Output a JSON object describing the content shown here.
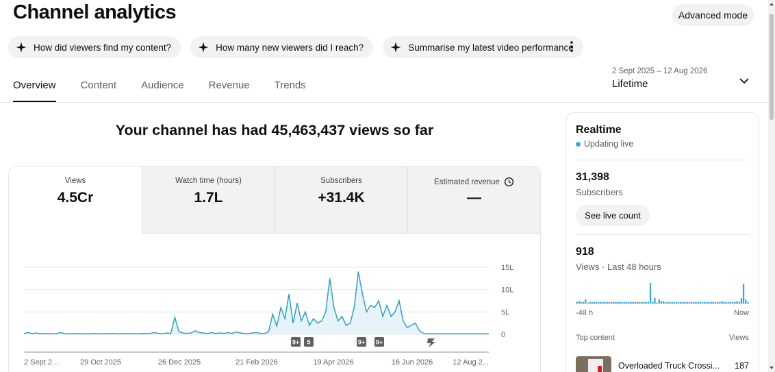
{
  "header": {
    "title": "Channel analytics",
    "advanced_mode": "Advanced mode"
  },
  "chips": [
    "How did viewers find my content?",
    "How many new viewers did I reach?",
    "Summarise my latest video performance"
  ],
  "tabs": [
    {
      "label": "Overview",
      "active": true
    },
    {
      "label": "Content",
      "active": false
    },
    {
      "label": "Audience",
      "active": false
    },
    {
      "label": "Revenue",
      "active": false
    },
    {
      "label": "Trends",
      "active": false
    }
  ],
  "date": {
    "range": "2 Sept 2025 – 12 Aug 2026",
    "period": "Lifetime"
  },
  "headline": "Your channel has had 45,463,437 views so far",
  "metrics": [
    {
      "label": "Views",
      "value": "4.5Cr"
    },
    {
      "label": "Watch time (hours)",
      "value": "1.7L"
    },
    {
      "label": "Subscribers",
      "value": "+31.4K"
    },
    {
      "label": "Estimated revenue",
      "value": "—"
    }
  ],
  "chart_data": {
    "type": "area",
    "y_ticks": [
      "15L",
      "10L",
      "5L",
      "0"
    ],
    "ylim": [
      0,
      1500000
    ],
    "x_ticks": [
      "2 Sept 2...",
      "29 Oct 2025",
      "26 Dec 2025",
      "21 Feb 2026",
      "19 Apr 2026",
      "16 Jun 2026",
      "12 Aug 2..."
    ],
    "series": [
      {
        "values": [
          20000,
          40000,
          15000,
          30000,
          10000,
          20000,
          15000,
          10000,
          15000,
          40000,
          15000,
          10000,
          10000,
          15000,
          10000,
          10000,
          10000,
          20000,
          10000,
          10000,
          15000,
          10000,
          20000,
          10000,
          15000,
          20000,
          10000,
          15000,
          10000,
          20000,
          15000,
          20000,
          40000,
          20000,
          10000,
          30000,
          20000,
          380000,
          60000,
          30000,
          20000,
          30000,
          80000,
          40000,
          30000,
          15000,
          40000,
          20000,
          30000,
          20000,
          40000,
          20000,
          50000,
          30000,
          20000,
          15000,
          30000,
          40000,
          20000,
          15000,
          60000,
          450000,
          180000,
          600000,
          350000,
          900000,
          250000,
          700000,
          300000,
          500000,
          200000,
          350000,
          250000,
          300000,
          500000,
          1250000,
          600000,
          300000,
          400000,
          200000,
          250000,
          600000,
          1400000,
          900000,
          500000,
          650000,
          600000,
          750000,
          400000,
          650000,
          400000,
          500000,
          750000,
          300000,
          150000,
          200000,
          250000,
          80000,
          20000,
          10000,
          10000,
          10000,
          10000,
          10000,
          10000,
          10000,
          10000,
          10000,
          10000,
          10000,
          10000,
          10000,
          10000,
          10000,
          10000
        ]
      }
    ],
    "markers": [
      "9+",
      "5",
      "9+",
      "9+"
    ],
    "grid": true
  },
  "realtime": {
    "title": "Realtime",
    "status": "Updating live",
    "subscribers_value": "31,398",
    "subscribers_label": "Subscribers",
    "live_count_button": "See live count",
    "views_value": "918",
    "views_label": "Views · Last 48 hours",
    "axis_left": "-48 h",
    "axis_right": "Now",
    "bars": [
      2,
      3,
      2,
      2,
      5,
      1,
      2,
      2,
      2,
      2,
      2,
      2,
      2,
      2,
      2,
      2,
      2,
      2,
      2,
      2,
      2,
      2,
      2,
      2,
      2,
      2,
      2,
      2,
      2,
      2,
      2,
      2,
      2,
      2,
      26,
      2,
      7,
      1,
      5,
      3,
      3,
      2,
      2,
      2,
      2,
      2,
      2,
      2,
      2,
      2,
      2,
      2,
      2,
      2,
      2,
      2,
      2,
      2,
      2,
      2,
      2,
      2,
      2,
      2,
      2,
      2,
      2,
      3,
      2,
      2,
      2,
      2,
      2,
      2,
      3,
      2,
      7,
      25,
      5,
      2
    ],
    "top_content_label": "Top content",
    "views_col_label": "Views",
    "top_item_title": "Overloaded Truck Crossi...",
    "top_item_views": "187"
  },
  "colors": {
    "accent": "#3ea6d6",
    "line": "#2f9fc4"
  }
}
